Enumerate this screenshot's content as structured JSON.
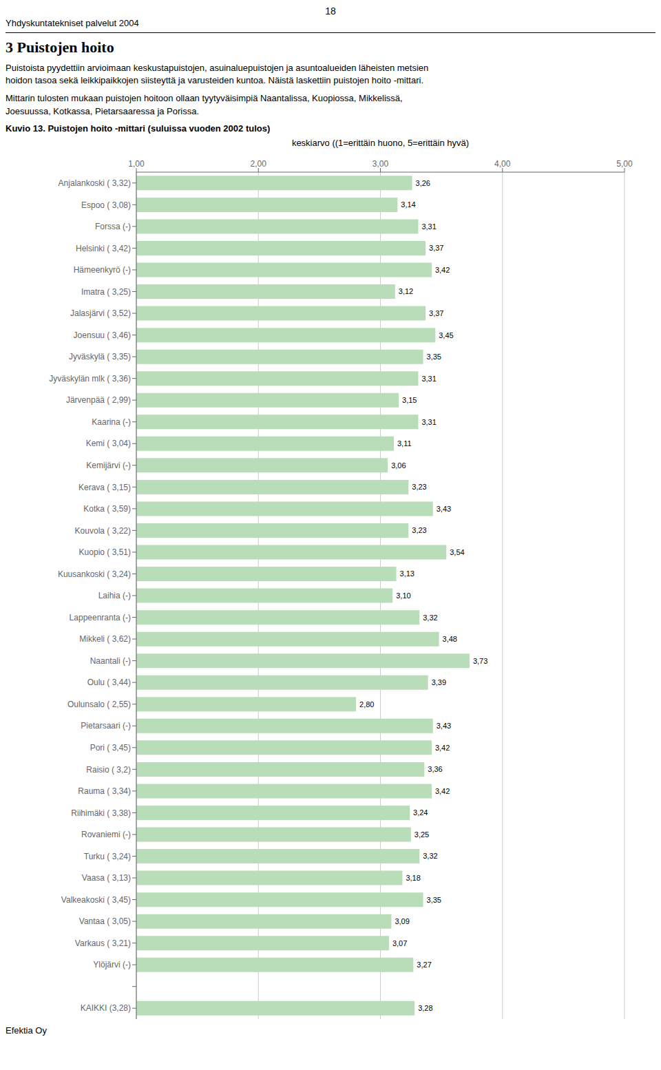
{
  "chart_data": {
    "type": "bar",
    "orientation": "horizontal",
    "title": "Kuvio 13. Puistojen hoito -mittari (suluissa vuoden 2002 tulos)",
    "x_label": "keskiarvo ((1=erittäin huono, 5=erittäin hyvä)",
    "annotations": [
      "18",
      "Yhdyskuntatekniset palvelut 2004",
      "3  Puistojen hoito",
      "Puistoista pyydettiin arvioimaan keskustapuistojen, asuinaluepuistojen ja asuntoalueiden läheisten metsien\nhoidon tasoa sekä leikkipaikkojen siisteyttä ja varusteiden kuntoa. Näistä laskettiin puistojen hoito -mittari.",
      "Mittarin tulosten mukaan puistojen hoitoon ollaan tyytyväisimpiä Naantalissa, Kuopiossa, Mikkelissä,\nJoesuussa, Kotkassa, Pietarsaaressa ja Porissa.",
      "Efektia Oy"
    ],
    "categories": [
      "Anjalankoski ( 3,32)",
      "Espoo ( 3,08)",
      "Forssa (-)",
      "Helsinki ( 3,42)",
      "Hämeenkyrö (-)",
      "Imatra ( 3,25)",
      "Jalasjärvi ( 3,52)",
      "Joensuu ( 3,46)",
      "Jyväskylä ( 3,35)",
      "Jyväskylän mlk ( 3,36)",
      "Järvenpää ( 2,99)",
      "Kaarina (-)",
      "Kemi ( 3,04)",
      "Kemijärvi (-)",
      "Kerava ( 3,15)",
      "Kotka ( 3,59)",
      "Kouvola ( 3,22)",
      "Kuopio ( 3,51)",
      "Kuusankoski ( 3,24)",
      "Laihia (-)",
      "Lappeenranta (-)",
      "Mikkeli ( 3,62)",
      "Naantali (-)",
      "Oulu ( 3,44)",
      "Oulunsalo ( 2,55)",
      "Pietarsaari (-)",
      "Pori ( 3,45)",
      "Raisio ( 3,2)",
      "Rauma ( 3,34)",
      "Riihimäki ( 3,38)",
      "Rovaniemi (-)",
      "Turku ( 3,24)",
      "Vaasa ( 3,13)",
      "Valkeakoski ( 3,45)",
      "Vantaa ( 3,05)",
      "Varkaus ( 3,21)",
      "Ylöjärvi (-)",
      null,
      "KAIKKI (3,28)"
    ],
    "values": [
      3.26,
      3.14,
      3.31,
      3.37,
      3.42,
      3.12,
      3.37,
      3.45,
      3.35,
      3.31,
      3.15,
      3.31,
      3.11,
      3.06,
      3.23,
      3.43,
      3.23,
      3.54,
      3.13,
      3.1,
      3.32,
      3.48,
      3.73,
      3.39,
      2.8,
      3.43,
      3.42,
      3.36,
      3.42,
      3.24,
      3.25,
      3.32,
      3.18,
      3.35,
      3.09,
      3.07,
      3.27,
      null,
      3.28
    ],
    "value_labels": [
      "3,26",
      "3,14",
      "3,31",
      "3,37",
      "3,42",
      "3,12",
      "3,37",
      "3,45",
      "3,35",
      "3,31",
      "3,15",
      "3,31",
      "3,11",
      "3,06",
      "3,23",
      "3,43",
      "3,23",
      "3,54",
      "3,13",
      "3,10",
      "3,32",
      "3,48",
      "3,73",
      "3,39",
      "2,80",
      "3,43",
      "3,42",
      "3,36",
      "3,42",
      "3,24",
      "3,25",
      "3,32",
      "3,18",
      "3,35",
      "3,09",
      "3,07",
      "3,27",
      null,
      "3,28"
    ],
    "color": "#b8ddb8",
    "xlim": [
      1.0,
      5.0
    ],
    "xticks": [
      {
        "value": 1.0,
        "label": "1,00"
      },
      {
        "value": 2.0,
        "label": "2,00"
      },
      {
        "value": 3.0,
        "label": "3,00"
      },
      {
        "value": 4.0,
        "label": "4,00"
      },
      {
        "value": 5.0,
        "label": "5,00"
      }
    ],
    "grid": true
  }
}
